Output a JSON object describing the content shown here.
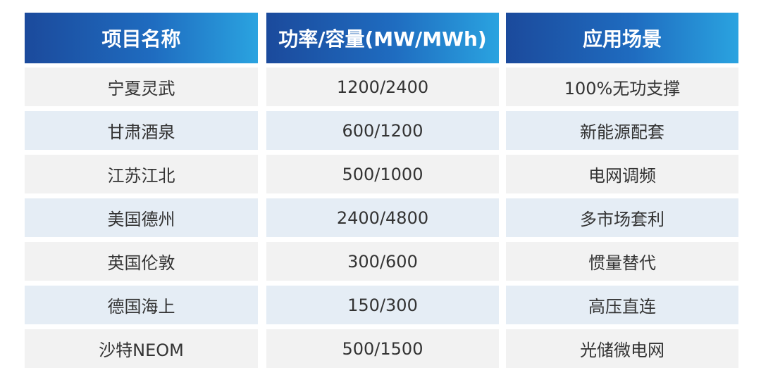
{
  "table": {
    "header": [
      "项目名称",
      "功率/容量(MW/MWh)",
      "应用场景"
    ],
    "rows": [
      [
        "宁夏灵武",
        "1200/2400",
        "100%无功支撑"
      ],
      [
        "甘肃酒泉",
        "600/1200",
        "新能源配套"
      ],
      [
        "江苏江北",
        "500/1000",
        "电网调频"
      ],
      [
        "美国德州",
        "2400/4800",
        "多市场套利"
      ],
      [
        "英国伦敦",
        "300/600",
        "惯量替代"
      ],
      [
        "德国海上",
        "150/300",
        "高压直连"
      ],
      [
        "沙特NEOM",
        "500/1500",
        "光储微电网"
      ]
    ]
  }
}
